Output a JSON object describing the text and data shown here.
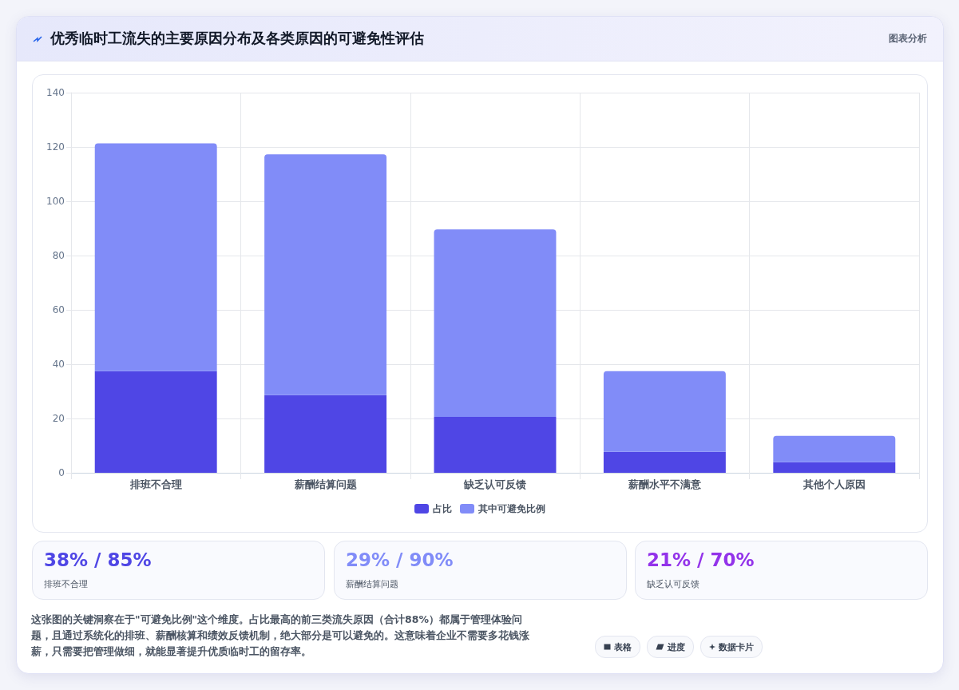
{
  "chart_data": {
    "type": "bar",
    "title": "优秀临时工流失的主要原因分布及各类原因的可避免性评估",
    "categories": [
      "排班不合理",
      "薪酬结算问题",
      "缺乏认可反馈",
      "薪酬水平不满意",
      "其他个人原因"
    ],
    "series": [
      {
        "name": "占比",
        "color": "#4f46e5",
        "values": [
          37.4,
          28.6,
          20.6,
          7.7,
          3.9
        ]
      },
      {
        "name": "其中可避免比例",
        "color": "#818cf8",
        "values": [
          83.9,
          88.7,
          69.0,
          29.7,
          9.7
        ]
      }
    ],
    "stacked": true,
    "ylim": [
      0,
      140
    ],
    "yticks": [
      0,
      20,
      40,
      60,
      80,
      100,
      120,
      140
    ],
    "grid": true,
    "legend": "bottom",
    "annotations": [
      "图表分析",
      "38% / 85%",
      "排班不合理",
      "29% / 90%",
      "薪酬结算问题",
      "21% / 70%",
      "缺乏认可反馈",
      "这张图的关键洞察在于\"可避免比例\"这个维度。占比最高的前三类流失原因（合计88%）都属于管理体验问题，且通过系统化的排班、薪酬核算和绩效反馈机制，绝大部分是可以避免的。这意味着企业不需要多花钱涨薪，只需要把管理做细，就能显著提升优质临时工的留存率。",
      "表格",
      "进度",
      "数据卡片"
    ]
  }
}
